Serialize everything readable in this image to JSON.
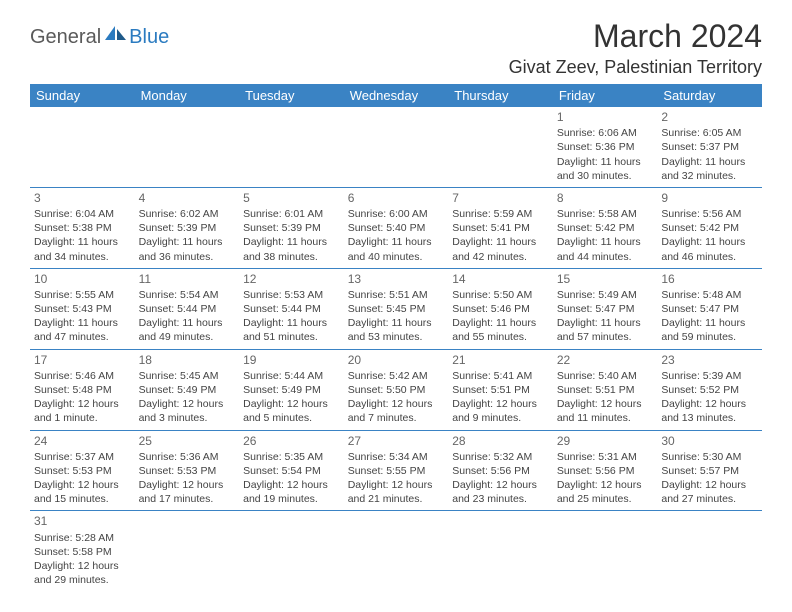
{
  "logo": {
    "part1": "General",
    "part2": "Blue"
  },
  "title": "March 2024",
  "location": "Givat Zeev, Palestinian Territory",
  "colors": {
    "header_bg": "#3a83c4",
    "header_text": "#ffffff",
    "logo_blue": "#2b7bc0",
    "logo_grey": "#5a5a5a",
    "cell_border": "#3a83c4"
  },
  "weekdays": [
    "Sunday",
    "Monday",
    "Tuesday",
    "Wednesday",
    "Thursday",
    "Friday",
    "Saturday"
  ],
  "weeks": [
    [
      null,
      null,
      null,
      null,
      null,
      {
        "n": "1",
        "sr": "Sunrise: 6:06 AM",
        "ss": "Sunset: 5:36 PM",
        "dl": "Daylight: 11 hours and 30 minutes."
      },
      {
        "n": "2",
        "sr": "Sunrise: 6:05 AM",
        "ss": "Sunset: 5:37 PM",
        "dl": "Daylight: 11 hours and 32 minutes."
      }
    ],
    [
      {
        "n": "3",
        "sr": "Sunrise: 6:04 AM",
        "ss": "Sunset: 5:38 PM",
        "dl": "Daylight: 11 hours and 34 minutes."
      },
      {
        "n": "4",
        "sr": "Sunrise: 6:02 AM",
        "ss": "Sunset: 5:39 PM",
        "dl": "Daylight: 11 hours and 36 minutes."
      },
      {
        "n": "5",
        "sr": "Sunrise: 6:01 AM",
        "ss": "Sunset: 5:39 PM",
        "dl": "Daylight: 11 hours and 38 minutes."
      },
      {
        "n": "6",
        "sr": "Sunrise: 6:00 AM",
        "ss": "Sunset: 5:40 PM",
        "dl": "Daylight: 11 hours and 40 minutes."
      },
      {
        "n": "7",
        "sr": "Sunrise: 5:59 AM",
        "ss": "Sunset: 5:41 PM",
        "dl": "Daylight: 11 hours and 42 minutes."
      },
      {
        "n": "8",
        "sr": "Sunrise: 5:58 AM",
        "ss": "Sunset: 5:42 PM",
        "dl": "Daylight: 11 hours and 44 minutes."
      },
      {
        "n": "9",
        "sr": "Sunrise: 5:56 AM",
        "ss": "Sunset: 5:42 PM",
        "dl": "Daylight: 11 hours and 46 minutes."
      }
    ],
    [
      {
        "n": "10",
        "sr": "Sunrise: 5:55 AM",
        "ss": "Sunset: 5:43 PM",
        "dl": "Daylight: 11 hours and 47 minutes."
      },
      {
        "n": "11",
        "sr": "Sunrise: 5:54 AM",
        "ss": "Sunset: 5:44 PM",
        "dl": "Daylight: 11 hours and 49 minutes."
      },
      {
        "n": "12",
        "sr": "Sunrise: 5:53 AM",
        "ss": "Sunset: 5:44 PM",
        "dl": "Daylight: 11 hours and 51 minutes."
      },
      {
        "n": "13",
        "sr": "Sunrise: 5:51 AM",
        "ss": "Sunset: 5:45 PM",
        "dl": "Daylight: 11 hours and 53 minutes."
      },
      {
        "n": "14",
        "sr": "Sunrise: 5:50 AM",
        "ss": "Sunset: 5:46 PM",
        "dl": "Daylight: 11 hours and 55 minutes."
      },
      {
        "n": "15",
        "sr": "Sunrise: 5:49 AM",
        "ss": "Sunset: 5:47 PM",
        "dl": "Daylight: 11 hours and 57 minutes."
      },
      {
        "n": "16",
        "sr": "Sunrise: 5:48 AM",
        "ss": "Sunset: 5:47 PM",
        "dl": "Daylight: 11 hours and 59 minutes."
      }
    ],
    [
      {
        "n": "17",
        "sr": "Sunrise: 5:46 AM",
        "ss": "Sunset: 5:48 PM",
        "dl": "Daylight: 12 hours and 1 minute."
      },
      {
        "n": "18",
        "sr": "Sunrise: 5:45 AM",
        "ss": "Sunset: 5:49 PM",
        "dl": "Daylight: 12 hours and 3 minutes."
      },
      {
        "n": "19",
        "sr": "Sunrise: 5:44 AM",
        "ss": "Sunset: 5:49 PM",
        "dl": "Daylight: 12 hours and 5 minutes."
      },
      {
        "n": "20",
        "sr": "Sunrise: 5:42 AM",
        "ss": "Sunset: 5:50 PM",
        "dl": "Daylight: 12 hours and 7 minutes."
      },
      {
        "n": "21",
        "sr": "Sunrise: 5:41 AM",
        "ss": "Sunset: 5:51 PM",
        "dl": "Daylight: 12 hours and 9 minutes."
      },
      {
        "n": "22",
        "sr": "Sunrise: 5:40 AM",
        "ss": "Sunset: 5:51 PM",
        "dl": "Daylight: 12 hours and 11 minutes."
      },
      {
        "n": "23",
        "sr": "Sunrise: 5:39 AM",
        "ss": "Sunset: 5:52 PM",
        "dl": "Daylight: 12 hours and 13 minutes."
      }
    ],
    [
      {
        "n": "24",
        "sr": "Sunrise: 5:37 AM",
        "ss": "Sunset: 5:53 PM",
        "dl": "Daylight: 12 hours and 15 minutes."
      },
      {
        "n": "25",
        "sr": "Sunrise: 5:36 AM",
        "ss": "Sunset: 5:53 PM",
        "dl": "Daylight: 12 hours and 17 minutes."
      },
      {
        "n": "26",
        "sr": "Sunrise: 5:35 AM",
        "ss": "Sunset: 5:54 PM",
        "dl": "Daylight: 12 hours and 19 minutes."
      },
      {
        "n": "27",
        "sr": "Sunrise: 5:34 AM",
        "ss": "Sunset: 5:55 PM",
        "dl": "Daylight: 12 hours and 21 minutes."
      },
      {
        "n": "28",
        "sr": "Sunrise: 5:32 AM",
        "ss": "Sunset: 5:56 PM",
        "dl": "Daylight: 12 hours and 23 minutes."
      },
      {
        "n": "29",
        "sr": "Sunrise: 5:31 AM",
        "ss": "Sunset: 5:56 PM",
        "dl": "Daylight: 12 hours and 25 minutes."
      },
      {
        "n": "30",
        "sr": "Sunrise: 5:30 AM",
        "ss": "Sunset: 5:57 PM",
        "dl": "Daylight: 12 hours and 27 minutes."
      }
    ],
    [
      {
        "n": "31",
        "sr": "Sunrise: 5:28 AM",
        "ss": "Sunset: 5:58 PM",
        "dl": "Daylight: 12 hours and 29 minutes."
      },
      null,
      null,
      null,
      null,
      null,
      null
    ]
  ]
}
